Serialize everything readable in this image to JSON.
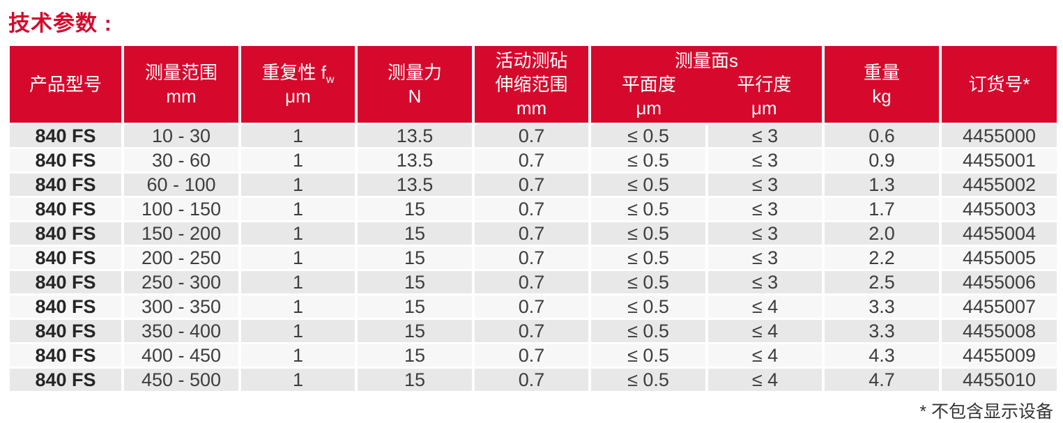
{
  "page_title": "技术参数 :",
  "colors": {
    "brand_red": "#d6092c",
    "row_odd": "#e8e8e8",
    "row_even": "#f7f7f7"
  },
  "table": {
    "columns": {
      "product_model": "产品型号",
      "measuring_range": "测量范围",
      "measuring_range_unit": "mm",
      "repeatability": "重复性 f",
      "repeatability_sub": "w",
      "repeatability_unit": "μm",
      "measuring_force": "测量力",
      "measuring_force_unit": "N",
      "anvil_line1": "活动测砧",
      "anvil_line2": "伸缩范围",
      "anvil_unit": "mm",
      "surfaces_group": "测量面s",
      "flatness": "平面度",
      "flatness_unit": "μm",
      "parallelism": "平行度",
      "parallelism_unit": "μm",
      "weight": "重量",
      "weight_unit": "kg",
      "order_no": "订货号*"
    },
    "rows": [
      [
        "840 FS",
        "10 - 30",
        "1",
        "13.5",
        "0.7",
        "≤ 0.5",
        "≤ 3",
        "0.6",
        "4455000"
      ],
      [
        "840 FS",
        "30 - 60",
        "1",
        "13.5",
        "0.7",
        "≤ 0.5",
        "≤ 3",
        "0.9",
        "4455001"
      ],
      [
        "840 FS",
        "60 - 100",
        "1",
        "13.5",
        "0.7",
        "≤ 0.5",
        "≤ 3",
        "1.3",
        "4455002"
      ],
      [
        "840 FS",
        "100 - 150",
        "1",
        "15",
        "0.7",
        "≤ 0.5",
        "≤ 3",
        "1.7",
        "4455003"
      ],
      [
        "840 FS",
        "150 - 200",
        "1",
        "15",
        "0.7",
        "≤ 0.5",
        "≤ 3",
        "2.0",
        "4455004"
      ],
      [
        "840 FS",
        "200 - 250",
        "1",
        "15",
        "0.7",
        "≤ 0.5",
        "≤ 3",
        "2.2",
        "4455005"
      ],
      [
        "840 FS",
        "250 - 300",
        "1",
        "15",
        "0.7",
        "≤ 0.5",
        "≤ 3",
        "2.5",
        "4455006"
      ],
      [
        "840 FS",
        "300 - 350",
        "1",
        "15",
        "0.7",
        "≤ 0.5",
        "≤ 4",
        "3.3",
        "4455007"
      ],
      [
        "840 FS",
        "350 - 400",
        "1",
        "15",
        "0.7",
        "≤ 0.5",
        "≤ 4",
        "3.3",
        "4455008"
      ],
      [
        "840 FS",
        "400 - 450",
        "1",
        "15",
        "0.7",
        "≤ 0.5",
        "≤ 4",
        "4.3",
        "4455009"
      ],
      [
        "840 FS",
        "450 - 500",
        "1",
        "15",
        "0.7",
        "≤ 0.5",
        "≤ 4",
        "4.7",
        "4455010"
      ]
    ]
  },
  "footnote": "* 不包含显示设备"
}
